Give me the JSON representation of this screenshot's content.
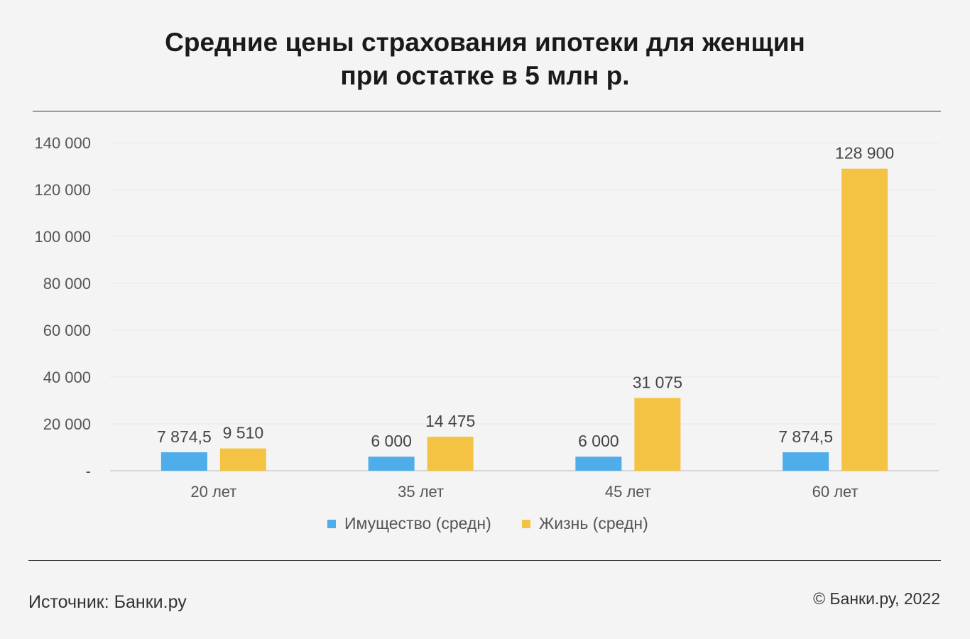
{
  "title_line1": "Средние цены страхования ипотеки для женщин",
  "title_line2": "при остатке в 5 млн р.",
  "footer": {
    "source": "Источник: Банки.ру",
    "copyright": "© Банки.ру, 2022"
  },
  "colors": {
    "blue": "#4fade9",
    "yellow": "#f4c343"
  },
  "chart_data": {
    "type": "bar",
    "categories": [
      "20 лет",
      "35 лет",
      "45 лет",
      "60 лет"
    ],
    "series": [
      {
        "name": "Имущество (средн)",
        "color": "#4fade9",
        "values": [
          7874.5,
          6000,
          6000,
          7874.5
        ],
        "labels": [
          "7 874,5",
          "6 000",
          "6 000",
          "7 874,5"
        ]
      },
      {
        "name": "Жизнь (средн)",
        "color": "#f4c343",
        "values": [
          9510,
          14475,
          31075,
          128900
        ],
        "labels": [
          "9 510",
          "14 475",
          "31 075",
          "128 900"
        ]
      }
    ],
    "ylim": [
      0,
      140000
    ],
    "yticks": [
      0,
      20000,
      40000,
      60000,
      80000,
      100000,
      120000,
      140000
    ],
    "ytick_labels": [
      "-",
      "20 000",
      "40 000",
      "60 000",
      "80 000",
      "100 000",
      "120 000",
      "140 000"
    ],
    "grid": true,
    "legend": "bottom"
  }
}
